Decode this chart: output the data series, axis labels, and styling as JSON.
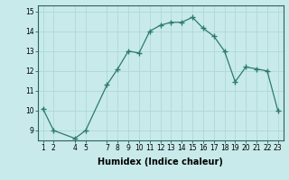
{
  "x": [
    1,
    2,
    4,
    5,
    7,
    8,
    9,
    10,
    11,
    12,
    13,
    14,
    15,
    16,
    17,
    18,
    19,
    20,
    21,
    22,
    23
  ],
  "y": [
    10.1,
    9.0,
    8.6,
    9.0,
    11.3,
    12.1,
    13.0,
    12.9,
    14.0,
    14.3,
    14.45,
    14.45,
    14.7,
    14.15,
    13.75,
    13.0,
    11.45,
    12.2,
    12.1,
    12.0,
    10.0
  ],
  "line_color": "#2d7a6e",
  "marker": "+",
  "marker_size": 4,
  "bg_color": "#c8eaea",
  "grid_color": "#b0d8d8",
  "xlabel": "Humidex (Indice chaleur)",
  "ylim": [
    8.5,
    15.3
  ],
  "xlim": [
    0.5,
    23.5
  ],
  "yticks": [
    9,
    10,
    11,
    12,
    13,
    14,
    15
  ],
  "xticks": [
    1,
    2,
    4,
    5,
    7,
    8,
    9,
    10,
    11,
    12,
    13,
    14,
    15,
    16,
    17,
    18,
    19,
    20,
    21,
    22,
    23
  ],
  "tick_fontsize": 5.5,
  "xlabel_fontsize": 7
}
